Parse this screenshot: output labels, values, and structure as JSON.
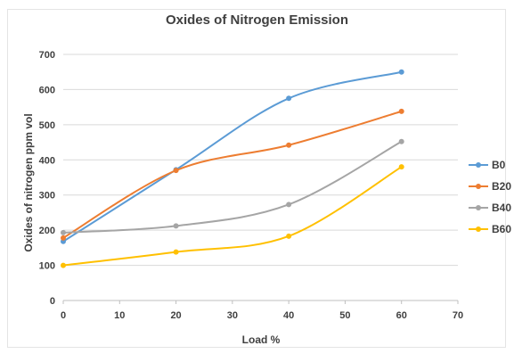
{
  "chart_data": {
    "type": "line",
    "title": "Oxides of Nitrogen Emission",
    "xlabel": "Load %",
    "ylabel": "Oxides of  nitrogen ppm vol",
    "x": [
      0,
      20,
      40,
      60
    ],
    "xlim": [
      0,
      70
    ],
    "xticks": [
      0,
      10,
      20,
      30,
      40,
      50,
      60,
      70
    ],
    "ylim": [
      0,
      700
    ],
    "yticks": [
      0,
      100,
      200,
      300,
      400,
      500,
      600,
      700
    ],
    "grid": true,
    "legend_position": "right",
    "series": [
      {
        "name": "B0",
        "color": "#5b9bd5",
        "values": [
          168,
          372,
          575,
          650
        ]
      },
      {
        "name": "B20",
        "color": "#ed7d31",
        "values": [
          178,
          370,
          442,
          538
        ]
      },
      {
        "name": "B40",
        "color": "#a5a5a5",
        "values": [
          193,
          212,
          273,
          452
        ]
      },
      {
        "name": "B60",
        "color": "#ffc000",
        "values": [
          100,
          138,
          183,
          380
        ]
      }
    ]
  }
}
